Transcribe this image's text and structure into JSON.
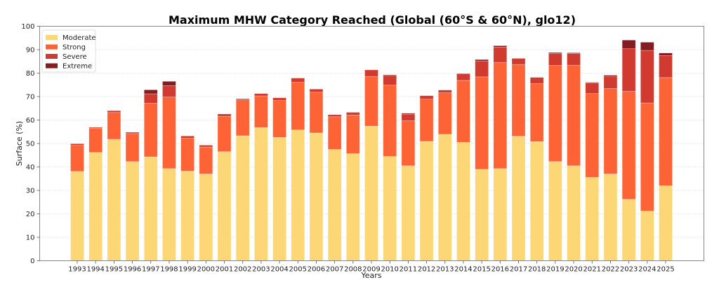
{
  "chart_data": {
    "type": "bar",
    "stacked": true,
    "title": "Maximum MHW Category Reached (Global (60°S & 60°N), glo12)",
    "xlabel": "Years",
    "ylabel": "Surface (%)",
    "ylim": [
      0,
      100
    ],
    "yticks": [
      0,
      10,
      20,
      30,
      40,
      50,
      60,
      70,
      80,
      90,
      100
    ],
    "grid": "y-dotted",
    "legend_position": "top-left",
    "categories": [
      "1993",
      "1994",
      "1995",
      "1996",
      "1997",
      "1998",
      "1999",
      "2000",
      "2001",
      "2002",
      "2003",
      "2004",
      "2005",
      "2006",
      "2007",
      "2008",
      "2009",
      "2010",
      "2011",
      "2012",
      "2013",
      "2014",
      "2015",
      "2016",
      "2017",
      "2018",
      "2019",
      "2020",
      "2021",
      "2022",
      "2023",
      "2024",
      "2025"
    ],
    "series": [
      {
        "name": "Moderate",
        "color": "#fdd775",
        "values": [
          38.1,
          46.2,
          51.8,
          42.3,
          44.3,
          39.3,
          38.2,
          37.0,
          46.5,
          53.3,
          56.8,
          52.6,
          55.8,
          54.5,
          47.5,
          45.7,
          57.4,
          44.5,
          40.5,
          50.9,
          53.9,
          50.5,
          39.0,
          39.3,
          53.1,
          50.8,
          42.3,
          40.5,
          35.6,
          37.0,
          26.2,
          21.2,
          32.0
        ]
      },
      {
        "name": "Strong",
        "color": "#fe6335",
        "values": [
          11.1,
          10.3,
          11.4,
          11.9,
          22.9,
          30.5,
          14.1,
          11.5,
          15.1,
          15.3,
          13.5,
          15.7,
          20.3,
          17.4,
          13.9,
          16.4,
          21.2,
          30.4,
          19.2,
          18.0,
          17.7,
          26.4,
          39.4,
          45.3,
          30.6,
          24.8,
          41.0,
          42.9,
          35.7,
          36.4,
          46.0,
          46.1,
          46.1
        ]
      },
      {
        "name": "Severe",
        "color": "#d13a2f",
        "values": [
          0.7,
          0.4,
          0.8,
          0.6,
          4.0,
          4.9,
          0.9,
          0.8,
          1.0,
          0.5,
          1.0,
          1.2,
          1.8,
          1.3,
          0.9,
          1.2,
          2.8,
          4.1,
          2.8,
          1.5,
          1.2,
          2.9,
          6.8,
          6.5,
          2.6,
          2.6,
          5.1,
          5.0,
          4.6,
          5.1,
          18.2,
          22.4,
          9.4
        ]
      },
      {
        "name": "Extreme",
        "color": "#841d22",
        "values": [
          0,
          0,
          0,
          0,
          1.7,
          1.8,
          0,
          0,
          0,
          0,
          0,
          0,
          0,
          0,
          0,
          0,
          0,
          0.3,
          0.4,
          0,
          0,
          0,
          0.6,
          0.6,
          0,
          0,
          0.4,
          0.3,
          0.2,
          0.6,
          3.7,
          3.5,
          1.1
        ]
      }
    ]
  }
}
